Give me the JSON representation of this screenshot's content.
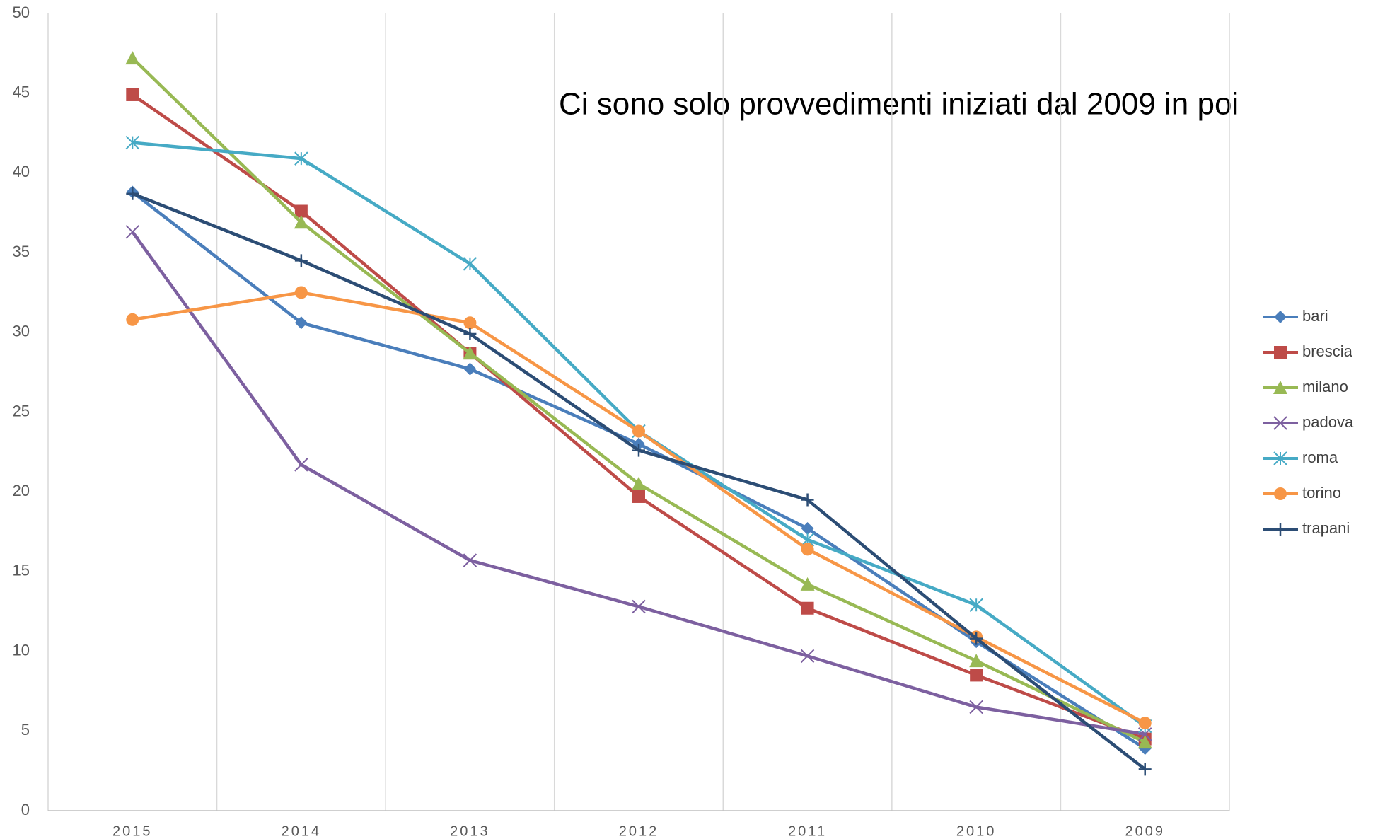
{
  "chart_data": {
    "type": "line",
    "title": "Ci sono solo provvedimenti iniziati dal 2009 in poi",
    "categories": [
      "2015",
      "2014",
      "2013",
      "2012",
      "2011",
      "2010",
      "2009"
    ],
    "ylim": [
      0,
      50
    ],
    "yticks": [
      0,
      5,
      10,
      15,
      20,
      25,
      30,
      35,
      40,
      45,
      50
    ],
    "legend": "right",
    "series": [
      {
        "name": "bari",
        "color": "#4a7ebb",
        "marker": "diamond",
        "values": [
          38.8,
          30.6,
          27.7,
          23.0,
          17.7,
          10.6,
          3.9
        ]
      },
      {
        "name": "brescia",
        "color": "#be4b48",
        "marker": "square",
        "values": [
          44.9,
          37.6,
          28.7,
          19.7,
          12.7,
          8.5,
          4.5
        ]
      },
      {
        "name": "milano",
        "color": "#98b954",
        "marker": "triangle",
        "values": [
          47.2,
          36.9,
          28.7,
          20.5,
          14.2,
          9.4,
          4.3
        ]
      },
      {
        "name": "padova",
        "color": "#7d60a0",
        "marker": "x",
        "values": [
          36.3,
          21.7,
          15.7,
          12.8,
          9.7,
          6.5,
          4.8
        ]
      },
      {
        "name": "roma",
        "color": "#46aac5",
        "marker": "asterisk",
        "values": [
          41.9,
          40.9,
          34.3,
          23.8,
          17.0,
          12.9,
          5.3
        ]
      },
      {
        "name": "torino",
        "color": "#f79646",
        "marker": "circle",
        "values": [
          30.8,
          32.5,
          30.6,
          23.8,
          16.4,
          10.9,
          5.5
        ]
      },
      {
        "name": "trapani",
        "color": "#2c4d75",
        "marker": "plus",
        "values": [
          38.7,
          34.5,
          29.9,
          22.6,
          19.5,
          10.8,
          2.6
        ]
      }
    ]
  }
}
